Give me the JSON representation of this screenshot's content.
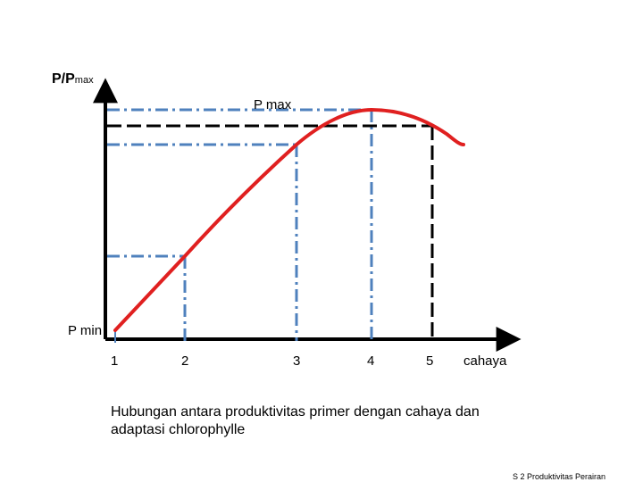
{
  "axis": {
    "y_label": "P/P",
    "y_label_sub": "max",
    "x_label": "cahaya",
    "ticks": [
      "1",
      "2",
      "3",
      "4",
      "5"
    ]
  },
  "labels": {
    "p_max": "P max",
    "p_min": "P min"
  },
  "caption": "Hubungan antara produktivitas primer dengan cahaya dan adaptasi chlorophylle",
  "footer": "S 2 Produktivitas Perairan",
  "colors": {
    "curve": "#e02020",
    "guide_blue": "#4f81bd",
    "guide_black": "#000000",
    "axis": "#000000"
  }
}
